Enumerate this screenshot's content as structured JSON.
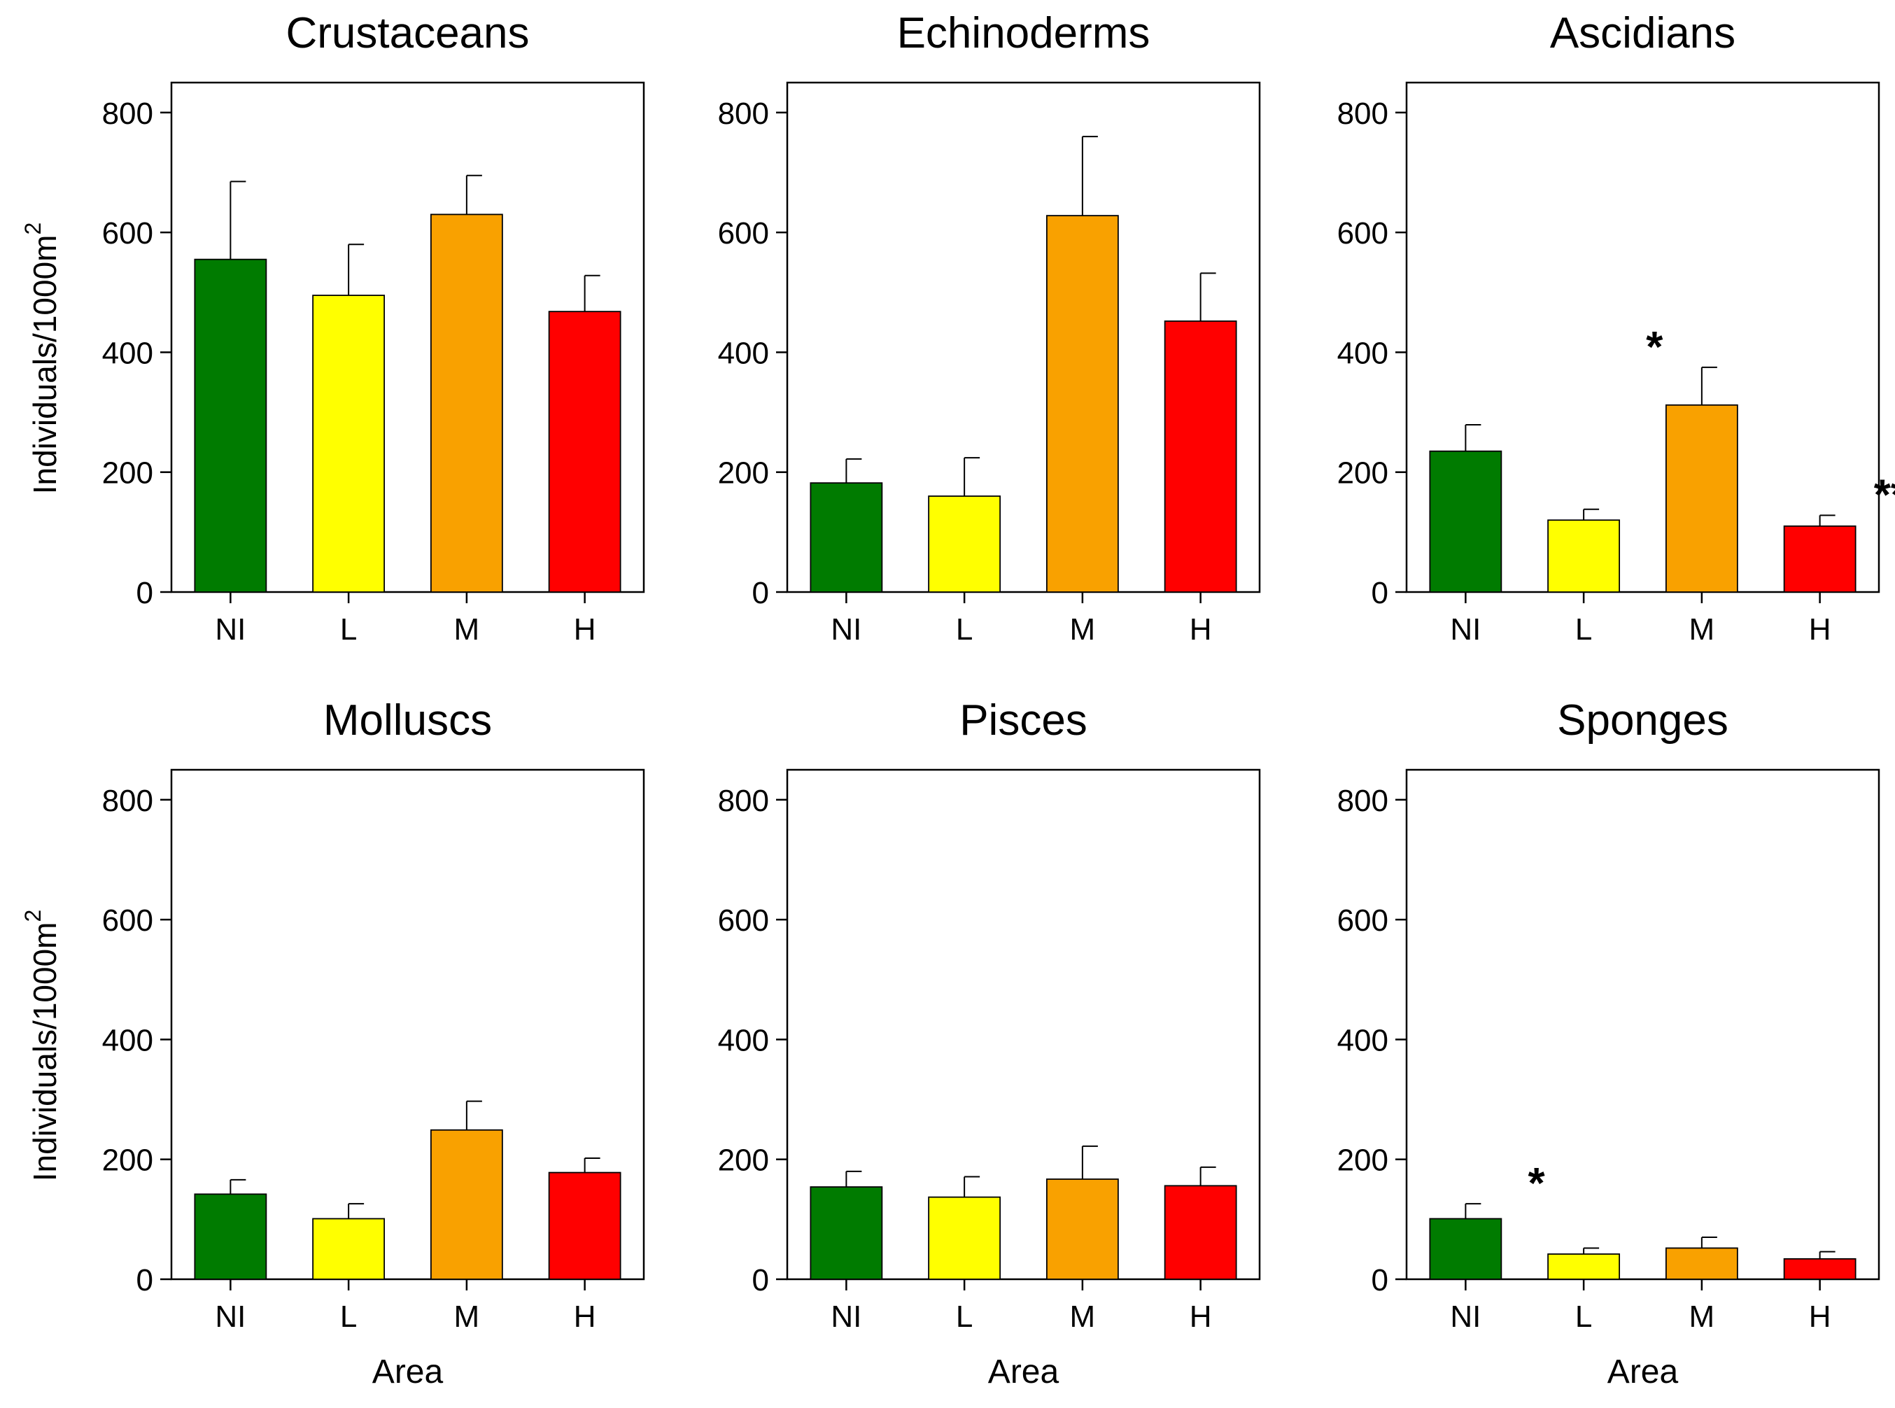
{
  "colors": {
    "NI": "#007b00",
    "L": "#ffff00",
    "M": "#f9a100",
    "H": "#ff0000",
    "outline": "#000000"
  },
  "y_axis_label": {
    "text": "Individuals/1000m",
    "superscript": "2"
  },
  "x_axis_label": "Area",
  "chart_data": [
    {
      "type": "bar",
      "title": "Crustaceans",
      "categories": [
        "NI",
        "L",
        "M",
        "H"
      ],
      "values": [
        555,
        495,
        630,
        468
      ],
      "errors": [
        130,
        85,
        65,
        60
      ],
      "ylim": [
        0,
        850
      ],
      "yticks": [
        0,
        200,
        400,
        600,
        800
      ],
      "ylabel": "Individuals/1000m2",
      "xlabel": "",
      "significance": [
        "",
        "",
        "",
        ""
      ]
    },
    {
      "type": "bar",
      "title": "Echinoderms",
      "categories": [
        "NI",
        "L",
        "M",
        "H"
      ],
      "values": [
        182,
        160,
        628,
        452
      ],
      "errors": [
        40,
        64,
        132,
        80
      ],
      "ylim": [
        0,
        850
      ],
      "yticks": [
        0,
        200,
        400,
        600,
        800
      ],
      "ylabel": "",
      "xlabel": "",
      "significance": [
        "",
        "",
        "",
        ""
      ]
    },
    {
      "type": "bar",
      "title": "Ascidians",
      "categories": [
        "NI",
        "L",
        "M",
        "H"
      ],
      "values": [
        235,
        120,
        312,
        110
      ],
      "errors": [
        44,
        18,
        63,
        18
      ],
      "ylim": [
        0,
        850
      ],
      "yticks": [
        0,
        200,
        400,
        600,
        800
      ],
      "ylabel": "",
      "xlabel": "",
      "significance": [
        "",
        "*",
        "",
        "**"
      ]
    },
    {
      "type": "bar",
      "title": "Molluscs",
      "categories": [
        "NI",
        "L",
        "M",
        "H"
      ],
      "values": [
        142,
        101,
        249,
        178
      ],
      "errors": [
        24,
        25,
        48,
        24
      ],
      "ylim": [
        0,
        850
      ],
      "yticks": [
        0,
        200,
        400,
        600,
        800
      ],
      "ylabel": "Individuals/1000m2",
      "xlabel": "Area",
      "significance": [
        "",
        "",
        "",
        ""
      ]
    },
    {
      "type": "bar",
      "title": "Pisces",
      "categories": [
        "NI",
        "L",
        "M",
        "H"
      ],
      "values": [
        154,
        137,
        167,
        156
      ],
      "errors": [
        26,
        34,
        55,
        31
      ],
      "ylim": [
        0,
        850
      ],
      "yticks": [
        0,
        200,
        400,
        600,
        800
      ],
      "ylabel": "",
      "xlabel": "Area",
      "significance": [
        "",
        "",
        "",
        ""
      ]
    },
    {
      "type": "bar",
      "title": "Sponges",
      "categories": [
        "NI",
        "L",
        "M",
        "H"
      ],
      "values": [
        101,
        42,
        52,
        34
      ],
      "errors": [
        25,
        10,
        18,
        12
      ],
      "ylim": [
        0,
        850
      ],
      "yticks": [
        0,
        200,
        400,
        600,
        800
      ],
      "ylabel": "",
      "xlabel": "Area",
      "significance": [
        "*",
        "",
        "",
        ""
      ]
    }
  ]
}
